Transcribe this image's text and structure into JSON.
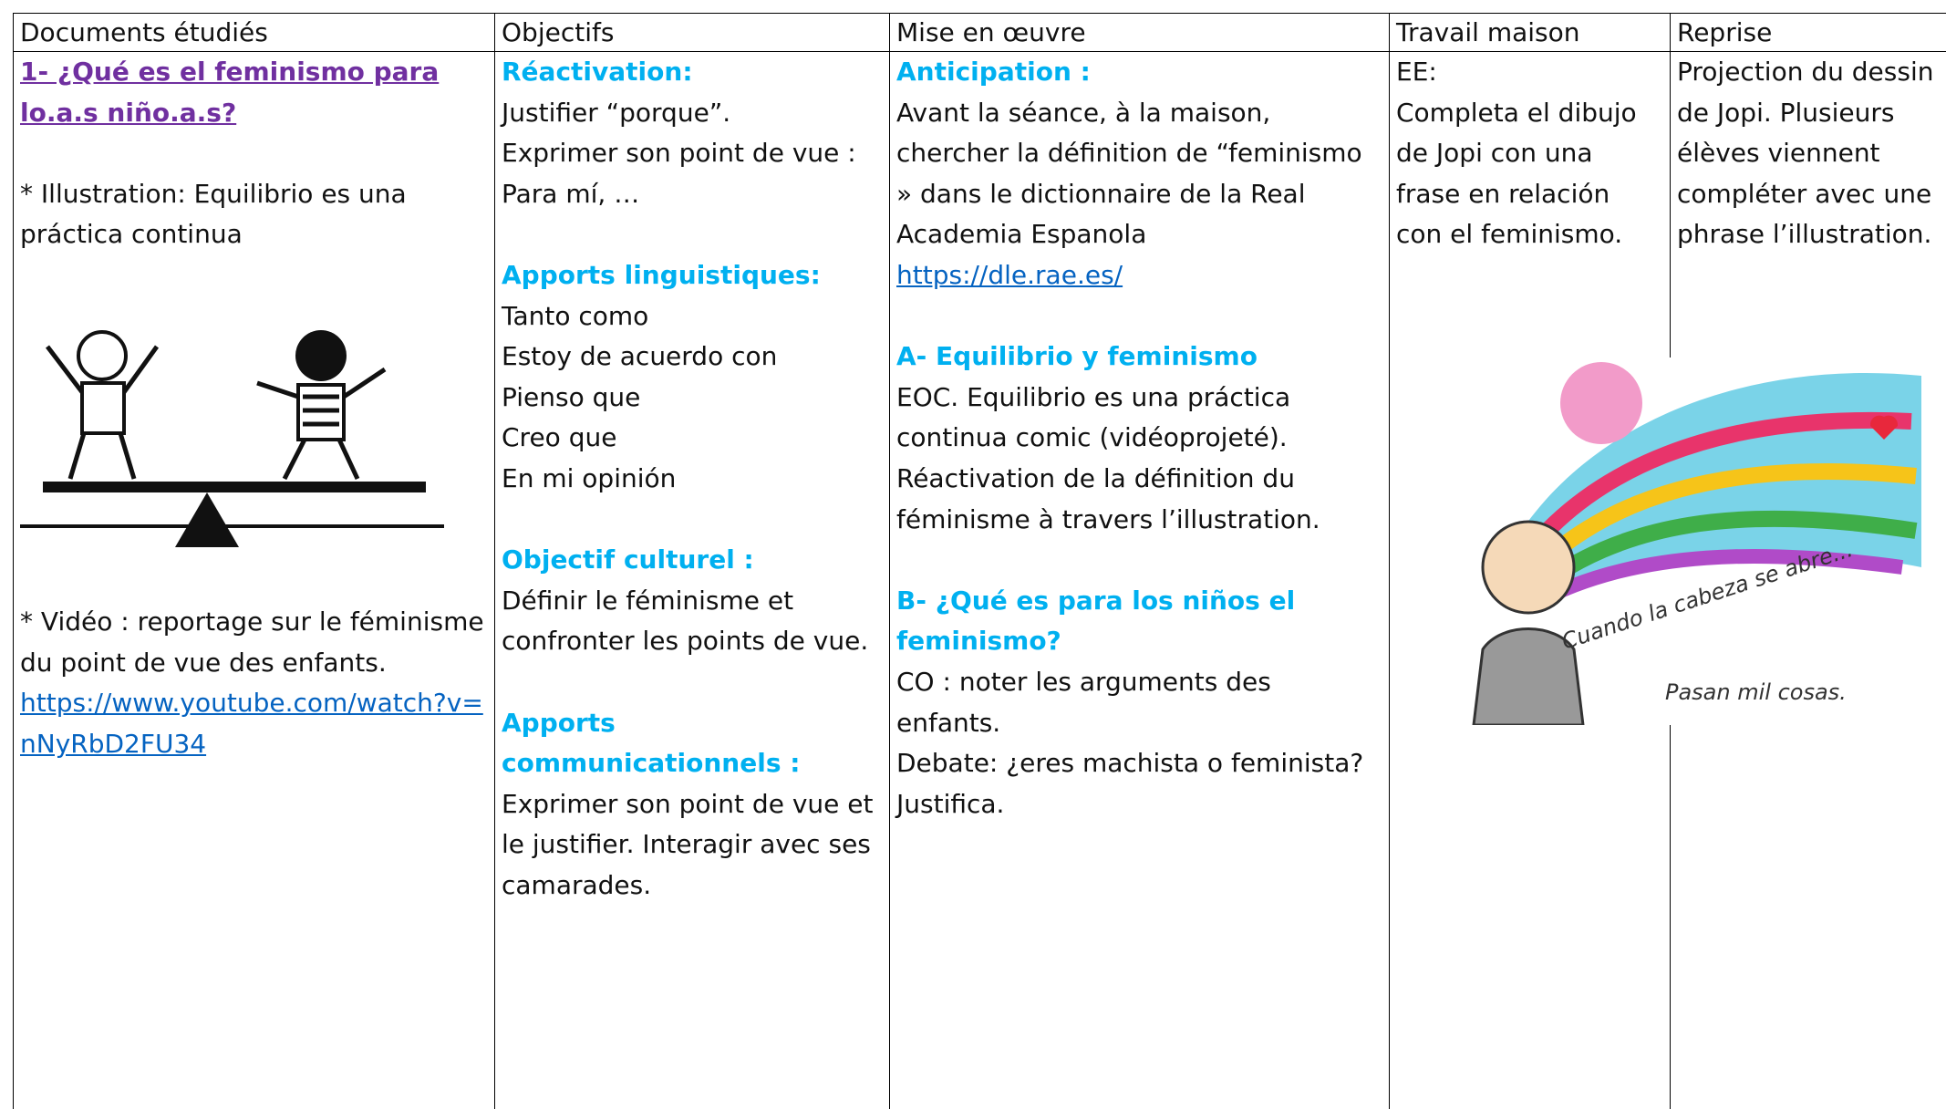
{
  "table": {
    "headers": [
      "Documents étudiés",
      "Objectifs",
      "Mise en œuvre",
      "Travail maison",
      "Reprise"
    ],
    "documents": {
      "title": "1- ¿Qué es el feminismo para lo.a.s niño.a.s?",
      "illustration": "* Illustration: Equilibrio es una práctica continua",
      "video": "* Vidéo : reportage sur le féminisme du point de vue des enfants.",
      "url": "https://www.youtube.com/watch?v=nNyRbD2FU34"
    },
    "objectifs": [
      {
        "heading": "Réactivation:",
        "lines": [
          "Justifier “porque”.",
          "Exprimer son point de vue : Para mí, …"
        ]
      },
      {
        "heading": "Apports linguistiques:",
        "lines": [
          "Tanto como",
          "Estoy de acuerdo con",
          "Pienso que",
          "Creo que",
          "En mi opinión"
        ]
      },
      {
        "heading": "Objectif culturel :",
        "lines": [
          "Définir le féminisme et confronter les points de vue."
        ]
      },
      {
        "heading": "Apports communicationnels :",
        "lines": [
          "Exprimer son point de vue et le justifier. Interagir avec ses camarades."
        ]
      }
    ],
    "mise_en_oeuvre": [
      {
        "heading": "Anticipation :",
        "lines": [
          "Avant la séance, à la maison, chercher la définition de “feminismo » dans le dictionnaire de la Real Academia Espanola"
        ],
        "link": "https://dle.rae.es/"
      },
      {
        "heading": "A- Equilibrio y feminismo",
        "lines": [
          "EOC. Equilibrio es una práctica continua comic (vidéoprojeté). Réactivation de la définition du féminisme à travers l’illustration."
        ]
      },
      {
        "heading": "B- ¿Qué es para los niños el feminismo?",
        "lines": [
          "CO : noter les arguments des enfants.",
          "Debate: ¿eres machista o feminista? Justifica."
        ]
      }
    ],
    "travail_maison": [
      "EE:",
      "Completa el dibujo de Jopi con una frase en relación con el feminismo."
    ],
    "reprise": [
      "Projection du dessin de Jopi. Plusieurs élèves viennent compléter avec une phrase l’illustration."
    ],
    "image_text": [
      "Cuando la cabeza se abre...",
      "Pasan mil cosas."
    ]
  }
}
